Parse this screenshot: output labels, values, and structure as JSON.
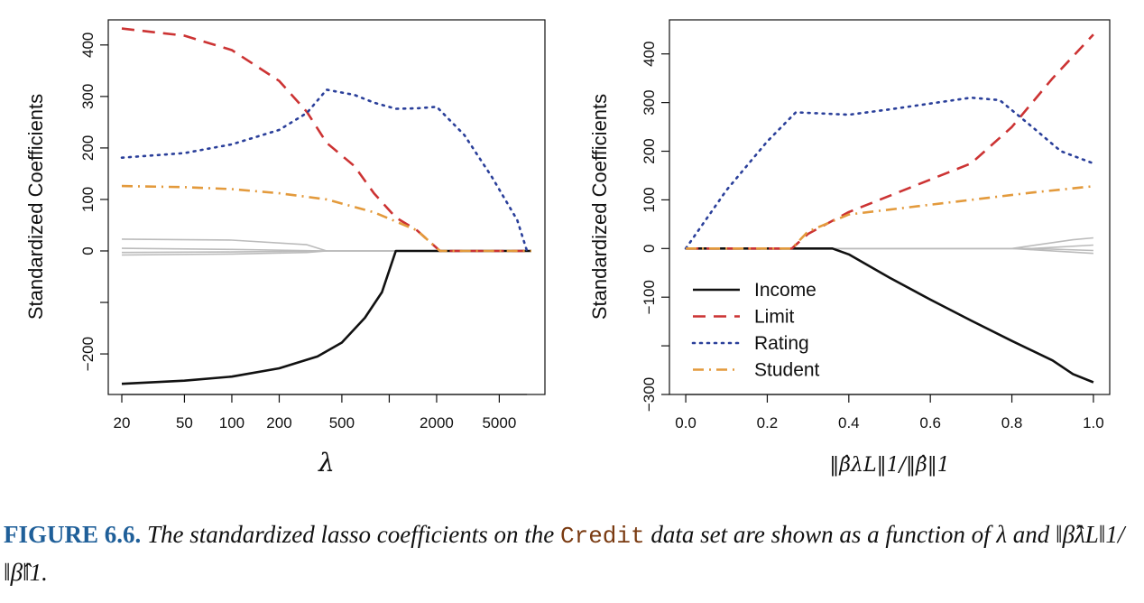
{
  "colors": {
    "income": "#111111",
    "limit": "#cc3333",
    "rating": "#2a3f9a",
    "student": "#e39a3c",
    "others": "#bbbbbb",
    "caption_label": "#1f5f99",
    "caption_code": "#7a3b12"
  },
  "chart_data": [
    {
      "type": "line",
      "xlabel": "λ",
      "ylabel": "Standardized Coefficients",
      "xscale": "log",
      "xlim": [
        20,
        8000
      ],
      "ylim": [
        -270,
        440
      ],
      "x_ticks": [
        "20",
        "50",
        "100",
        "200",
        "500",
        "2000",
        "5000"
      ],
      "y_ticks": [
        "−200",
        "",
        "0",
        "100",
        "200",
        "300",
        "400"
      ],
      "grid": false,
      "series": [
        {
          "name": "Income",
          "style": "solid",
          "x": [
            20,
            50,
            100,
            200,
            350,
            500,
            700,
            900,
            1100,
            8000
          ],
          "y": [
            -258,
            -252,
            -244,
            -228,
            -205,
            -178,
            -130,
            -80,
            0,
            0
          ]
        },
        {
          "name": "Limit",
          "style": "dashed",
          "x": [
            20,
            50,
            100,
            200,
            300,
            400,
            600,
            800,
            1100,
            1500,
            2100,
            8000
          ],
          "y": [
            432,
            418,
            390,
            330,
            270,
            210,
            165,
            112,
            65,
            40,
            0,
            0
          ]
        },
        {
          "name": "Rating",
          "style": "dotted",
          "x": [
            20,
            50,
            100,
            200,
            300,
            400,
            600,
            800,
            1100,
            1500,
            2000,
            3000,
            4500,
            6500,
            7500
          ],
          "y": [
            181,
            190,
            207,
            235,
            268,
            313,
            303,
            288,
            276,
            277,
            280,
            225,
            143,
            60,
            0
          ]
        },
        {
          "name": "Student",
          "style": "dashdot",
          "x": [
            20,
            50,
            100,
            200,
            400,
            800,
            1500,
            2100,
            8000
          ],
          "y": [
            126,
            124,
            120,
            112,
            100,
            75,
            40,
            0,
            0
          ]
        },
        {
          "name": "",
          "style": "solid-gray",
          "x": [
            20,
            100,
            300,
            400,
            8000
          ],
          "y": [
            23,
            21,
            12,
            0,
            0
          ]
        },
        {
          "name": "",
          "style": "solid-gray",
          "x": [
            20,
            100,
            400,
            8000
          ],
          "y": [
            5,
            3,
            0,
            0
          ]
        },
        {
          "name": "",
          "style": "solid-gray",
          "x": [
            20,
            100,
            400,
            8000
          ],
          "y": [
            -3,
            -2,
            0,
            0
          ]
        },
        {
          "name": "",
          "style": "solid-gray",
          "x": [
            20,
            100,
            300,
            400,
            8000
          ],
          "y": [
            -8,
            -6,
            -3,
            0,
            0
          ]
        }
      ]
    },
    {
      "type": "line",
      "xlabel": "‖β̂λL‖1/‖β̂‖1",
      "ylabel": "Standardized Coefficients",
      "xlim": [
        -0.04,
        1.04
      ],
      "ylim": [
        -300,
        470
      ],
      "x_ticks": [
        "0.0",
        "0.2",
        "0.4",
        "0.6",
        "0.8",
        "1.0"
      ],
      "y_ticks": [
        "−300",
        "",
        "−100",
        "0",
        "100",
        "200",
        "300",
        "400"
      ],
      "grid": false,
      "legend": {
        "position": "bottom-left",
        "entries": [
          "Income",
          "Limit",
          "Rating",
          "Student"
        ]
      },
      "series": [
        {
          "name": "Income",
          "style": "solid",
          "x": [
            0,
            0.36,
            0.4,
            0.5,
            0.6,
            0.7,
            0.8,
            0.9,
            0.95,
            1.0
          ],
          "y": [
            0,
            0,
            -12,
            -60,
            -105,
            -148,
            -190,
            -230,
            -258,
            -275
          ]
        },
        {
          "name": "Limit",
          "style": "dashed",
          "x": [
            0,
            0.26,
            0.3,
            0.4,
            0.55,
            0.7,
            0.8,
            0.9,
            1.0
          ],
          "y": [
            0,
            0,
            30,
            75,
            125,
            175,
            250,
            350,
            440
          ]
        },
        {
          "name": "Rating",
          "style": "dotted",
          "x": [
            0,
            0.1,
            0.2,
            0.27,
            0.4,
            0.5,
            0.6,
            0.7,
            0.77,
            0.85,
            0.92,
            1.0
          ],
          "y": [
            0,
            120,
            220,
            280,
            275,
            286,
            298,
            310,
            305,
            250,
            200,
            175
          ]
        },
        {
          "name": "Student",
          "style": "dashdot",
          "x": [
            0,
            0.26,
            0.3,
            0.4,
            0.55,
            0.7,
            0.85,
            1.0
          ],
          "y": [
            0,
            0,
            35,
            70,
            85,
            100,
            115,
            128
          ]
        },
        {
          "name": "",
          "style": "solid-gray",
          "x": [
            0,
            0.8,
            0.95,
            1.0
          ],
          "y": [
            0,
            0,
            18,
            22
          ]
        },
        {
          "name": "",
          "style": "solid-gray",
          "x": [
            0,
            0.85,
            1.0
          ],
          "y": [
            0,
            0,
            7
          ]
        },
        {
          "name": "",
          "style": "solid-gray",
          "x": [
            0,
            0.85,
            1.0
          ],
          "y": [
            0,
            0,
            -4
          ]
        },
        {
          "name": "",
          "style": "solid-gray",
          "x": [
            0,
            0.8,
            1.0
          ],
          "y": [
            0,
            0,
            -10
          ]
        }
      ]
    }
  ],
  "caption": {
    "label": "FIGURE 6.6.",
    "text_a": "The standardized lasso coefficients on the",
    "code": "Credit",
    "text_b": "data set are shown as a function of λ and ‖β̂λL‖1/‖β̂‖1."
  }
}
